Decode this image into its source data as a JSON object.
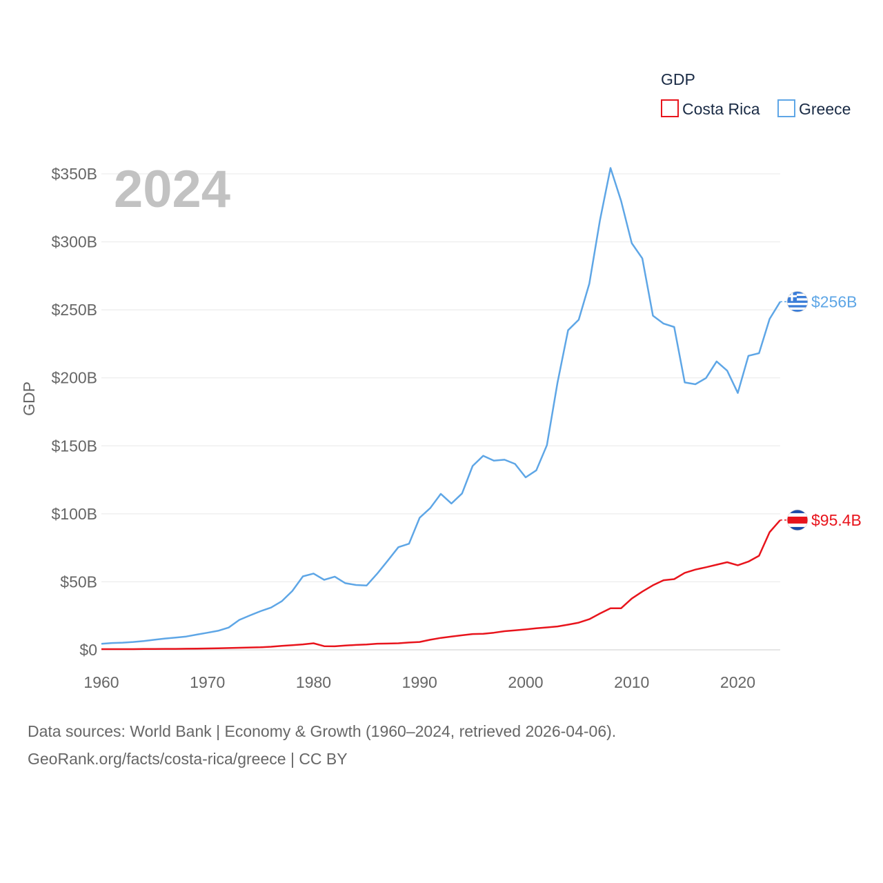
{
  "chart_data": {
    "type": "line",
    "title": "GDP",
    "ylabel": "GDP",
    "xlabel": "",
    "year_label": "2024",
    "xlim": [
      1960,
      2024
    ],
    "ylim": [
      0,
      350
    ],
    "y_unit": "billion USD",
    "x_ticks": [
      "1960",
      "1970",
      "1980",
      "1990",
      "2000",
      "2010",
      "2020"
    ],
    "y_ticks": [
      "$0",
      "$50B",
      "$100B",
      "$150B",
      "$200B",
      "$250B",
      "$300B",
      "$350B"
    ],
    "grid": true,
    "legend": {
      "title": "GDP",
      "position": "top-right"
    },
    "x": [
      1960,
      1961,
      1962,
      1963,
      1964,
      1965,
      1966,
      1967,
      1968,
      1969,
      1970,
      1971,
      1972,
      1973,
      1974,
      1975,
      1976,
      1977,
      1978,
      1979,
      1980,
      1981,
      1982,
      1983,
      1984,
      1985,
      1986,
      1987,
      1988,
      1989,
      1990,
      1991,
      1992,
      1993,
      1994,
      1995,
      1996,
      1997,
      1998,
      1999,
      2000,
      2001,
      2002,
      2003,
      2004,
      2005,
      2006,
      2007,
      2008,
      2009,
      2010,
      2011,
      2012,
      2013,
      2014,
      2015,
      2016,
      2017,
      2018,
      2019,
      2020,
      2021,
      2022,
      2023,
      2024
    ],
    "series": [
      {
        "name": "Costa Rica",
        "color": "#e8141c",
        "end_label": "$95.4B",
        "flag": "costa-rica-flag-icon",
        "values": [
          0.5,
          0.5,
          0.5,
          0.5,
          0.6,
          0.6,
          0.7,
          0.7,
          0.8,
          0.9,
          1.0,
          1.1,
          1.3,
          1.5,
          1.7,
          1.9,
          2.3,
          2.9,
          3.4,
          4.0,
          4.8,
          2.7,
          2.6,
          3.2,
          3.6,
          3.9,
          4.5,
          4.6,
          4.8,
          5.4,
          5.8,
          7.4,
          8.8,
          9.8,
          10.7,
          11.6,
          11.8,
          12.6,
          13.7,
          14.3,
          15.0,
          15.9,
          16.5,
          17.2,
          18.5,
          20.0,
          22.5,
          26.7,
          30.6,
          30.6,
          37.7,
          42.8,
          47.5,
          51.2,
          52.0,
          56.6,
          59.0,
          60.7,
          62.6,
          64.4,
          62.2,
          64.9,
          69.2,
          86.5,
          95.4
        ]
      },
      {
        "name": "Greece",
        "color": "#5ea6e6",
        "end_label": "$256B",
        "flag": "greece-flag-icon",
        "values": [
          4.4,
          5.0,
          5.3,
          5.8,
          6.5,
          7.4,
          8.3,
          9.0,
          9.8,
          11.2,
          12.6,
          14.0,
          16.4,
          22.0,
          25.3,
          28.4,
          31.1,
          35.7,
          43.3,
          54.0,
          56.1,
          51.5,
          53.8,
          49.0,
          47.7,
          47.3,
          56.0,
          65.6,
          75.5,
          78.0,
          97.1,
          104.2,
          114.7,
          107.6,
          115.0,
          135.2,
          142.7,
          139.1,
          139.8,
          136.7,
          126.8,
          132.0,
          150.5,
          196.3,
          235.0,
          242.7,
          269.3,
          315.6,
          354.3,
          330.0,
          299.0,
          287.8,
          245.7,
          239.9,
          237.4,
          196.6,
          195.3,
          199.8,
          212.1,
          205.3,
          188.9,
          216.2,
          218.1,
          243.3,
          256.0
        ]
      }
    ],
    "source": "Data sources: World Bank | Economy & Growth (1960–2024, retrieved 2026-04-06).",
    "credit": "GeoRank.org/facts/costa-rica/greece | CC BY"
  }
}
